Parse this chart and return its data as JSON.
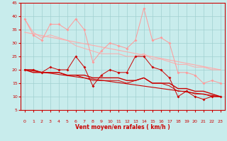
{
  "x": [
    0,
    1,
    2,
    3,
    4,
    5,
    6,
    7,
    8,
    9,
    10,
    11,
    12,
    13,
    14,
    15,
    16,
    17,
    18,
    19,
    20,
    21,
    22,
    23
  ],
  "line1": [
    39,
    33,
    31,
    37,
    37,
    35,
    39,
    35,
    23,
    27,
    30,
    29,
    28,
    31,
    43,
    31,
    32,
    30,
    19,
    19,
    18,
    15,
    16,
    15
  ],
  "line2": [
    39,
    34,
    32,
    33,
    32,
    31,
    29,
    28,
    27,
    26,
    26,
    26,
    25,
    25,
    26,
    24,
    24,
    23,
    22,
    22,
    21,
    21,
    20,
    20
  ],
  "line3": [
    20,
    20,
    19,
    21,
    20,
    20,
    25,
    21,
    14,
    18,
    20,
    19,
    19,
    25,
    25,
    21,
    20,
    17,
    10,
    12,
    10,
    9,
    10,
    10
  ],
  "line4": [
    20,
    19,
    19,
    19,
    19,
    18,
    18,
    18,
    17,
    17,
    17,
    17,
    16,
    16,
    17,
    15,
    15,
    15,
    13,
    13,
    12,
    12,
    11,
    10
  ],
  "line5": [
    20,
    20,
    19,
    19,
    19,
    18,
    18,
    17,
    16,
    16,
    16,
    16,
    15,
    16,
    17,
    15,
    15,
    14,
    12,
    12,
    11,
    11,
    10,
    10
  ],
  "trend1_x": [
    0,
    23
  ],
  "trend1_y": [
    34,
    20
  ],
  "trend2_x": [
    0,
    23
  ],
  "trend2_y": [
    20,
    10
  ],
  "bg_color": "#c8ecec",
  "grid_color": "#a0d0d0",
  "line1_color": "#ff9999",
  "line2_color": "#ffaaaa",
  "line3_color": "#cc0000",
  "line4_color": "#cc0000",
  "line5_color": "#cc0000",
  "trend_color1": "#ffaaaa",
  "trend_color2": "#cc0000",
  "xlabel": "Vent moyen/en rafales ( km/h )",
  "yticks": [
    5,
    10,
    15,
    20,
    25,
    30,
    35,
    40,
    45
  ],
  "xticks": [
    0,
    1,
    2,
    3,
    4,
    5,
    6,
    7,
    8,
    9,
    10,
    11,
    12,
    13,
    14,
    15,
    16,
    17,
    18,
    19,
    20,
    21,
    22,
    23
  ],
  "ylim": [
    5,
    45
  ],
  "xlim": [
    -0.5,
    23.5
  ],
  "arrow_symbols": [
    "↙",
    "↙",
    "↙",
    "↙",
    "↙",
    "↙",
    "↙",
    "↑",
    "↑",
    "↑",
    "→",
    "↗",
    "↗",
    "→",
    "→",
    "→",
    "→",
    "→",
    "→",
    "→",
    "→",
    "↗",
    "↗",
    "↗"
  ]
}
